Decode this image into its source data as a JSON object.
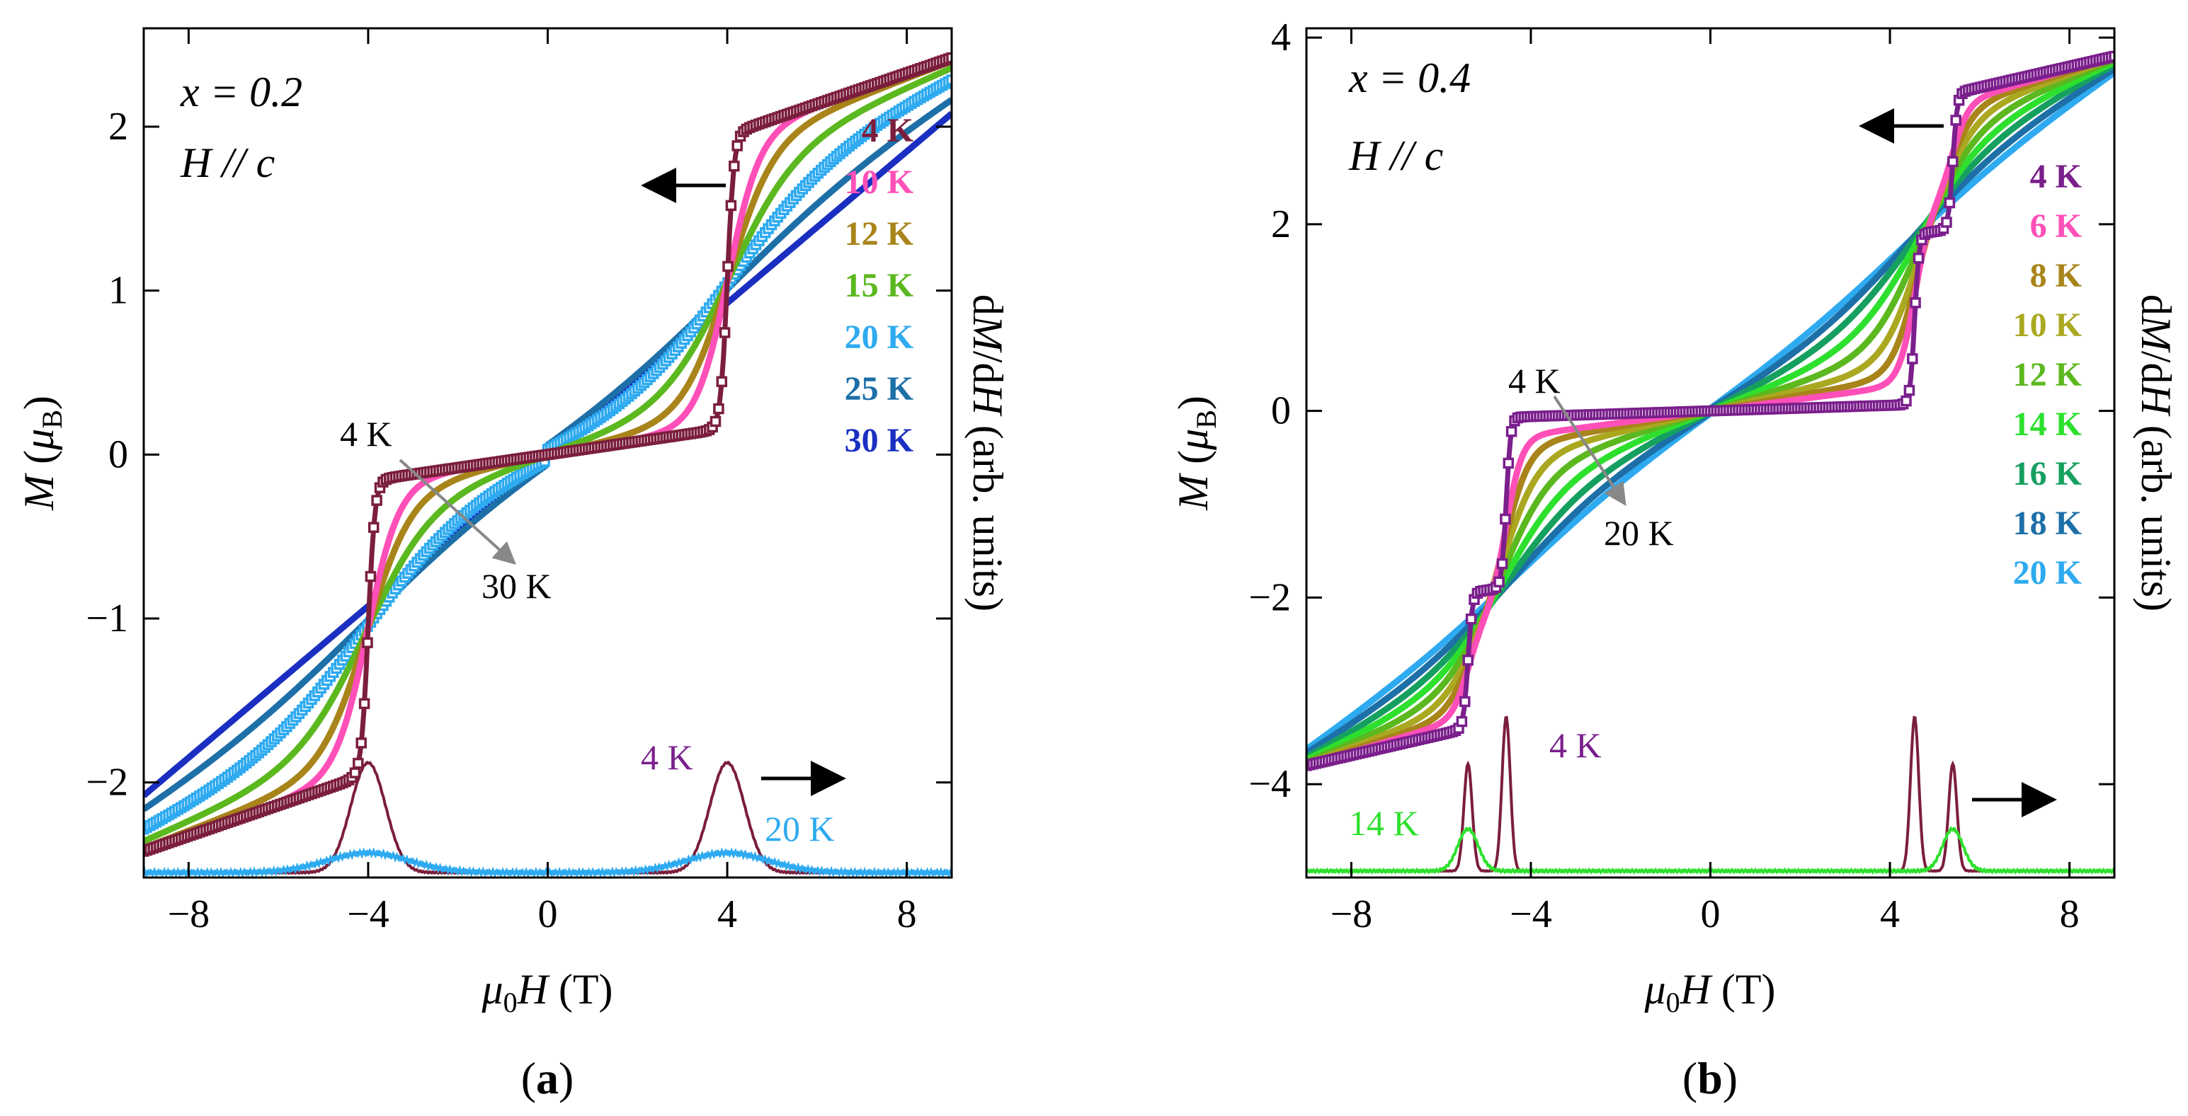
{
  "chart_data": [
    {
      "type": "line",
      "panel_label": "(a)",
      "panel_letter": "a",
      "xlim": [
        -9,
        9
      ],
      "ylim": [
        -2.58,
        2.6
      ],
      "xticks": [
        -8,
        -4,
        0,
        4,
        8
      ],
      "xtick_labels": [
        "−8",
        "−4",
        "0",
        "4",
        "8"
      ],
      "yticks": [
        -2,
        -1,
        0,
        1,
        2
      ],
      "ytick_labels": [
        "−2",
        "−1",
        "0",
        "1",
        "2"
      ],
      "xlabel": "μ0H (T)",
      "ylabel_left": "M (μB)",
      "ylabel_right": "dM/dH (arb. units)",
      "annotations": {
        "composition": "x = 0.2",
        "field_direction": "H // c",
        "trend_start": "4 K",
        "trend_end": "30 K",
        "deriv_label_4k": "4 K",
        "deriv_label_hi": "20 K"
      },
      "transition_field_T": 4.0,
      "transition_width_T": 0.3,
      "low_field_susceptibility": 0.04,
      "legend": [
        {
          "label": "4 K",
          "color": "#7b1e3c"
        },
        {
          "label": "10 K",
          "color": "#ff4fb8"
        },
        {
          "label": "12 K",
          "color": "#a8841a"
        },
        {
          "label": "15 K",
          "color": "#5bb81e"
        },
        {
          "label": "20 K",
          "color": "#2eaaf0"
        },
        {
          "label": "25 K",
          "color": "#1d6fa8"
        },
        {
          "label": "30 K",
          "color": "#1a2fc2"
        }
      ],
      "series": [
        {
          "name": "4 K",
          "color": "#7b1e3c",
          "M_at_9T": 2.42,
          "M_plateau_edge": 1.95,
          "kind": "sharp"
        },
        {
          "name": "10 K",
          "color": "#ff4fb8",
          "M_at_9T": 2.42,
          "sharpness": 0.35,
          "kind": "smooth"
        },
        {
          "name": "12 K",
          "color": "#a8841a",
          "M_at_9T": 2.4,
          "sharpness": 0.5,
          "kind": "smooth"
        },
        {
          "name": "15 K",
          "color": "#5bb81e",
          "M_at_9T": 2.36,
          "sharpness": 0.75,
          "kind": "smooth"
        },
        {
          "name": "20 K",
          "color": "#2eaaf0",
          "M_at_9T": 2.3,
          "sharpness": 1.15,
          "kind": "smooth"
        },
        {
          "name": "25 K",
          "color": "#1d6fa8",
          "M_at_9T": 2.2,
          "sharpness": 1.7,
          "kind": "smooth"
        },
        {
          "name": "30 K",
          "color": "#1a2fc2",
          "M_at_9T": 2.08,
          "sharpness": 2.6,
          "kind": "smooth"
        }
      ],
      "derivative": [
        {
          "name": "4 K",
          "color": "#7b1e3c",
          "peaks_T": [
            -4.0,
            4.0
          ],
          "baseline": -2.55,
          "height": 0.67,
          "width": 0.55
        },
        {
          "name": "20 K",
          "color": "#2eaaf0",
          "peaks_T": [
            -4.0,
            4.0
          ],
          "baseline": -2.55,
          "height": 0.12,
          "width": 1.3
        }
      ],
      "symbol_series": [
        "4 K",
        "20 K"
      ]
    },
    {
      "type": "line",
      "panel_label": "(b)",
      "panel_letter": "b",
      "xlim": [
        -9,
        9
      ],
      "ylim": [
        -5.0,
        4.1
      ],
      "xticks": [
        -8,
        -4,
        0,
        4,
        8
      ],
      "xtick_labels": [
        "−8",
        "−4",
        "0",
        "4",
        "8"
      ],
      "yticks": [
        -4,
        -2,
        0,
        2,
        4
      ],
      "ytick_labels": [
        "−4",
        "−2",
        "0",
        "2",
        "4"
      ],
      "xlabel": "μ0H (T)",
      "ylabel_left": "M (μB)",
      "ylabel_right": "dM/dH (arb. units)",
      "annotations": {
        "composition": "x = 0.4",
        "field_direction": "H // c",
        "trend_start": "4 K",
        "trend_end": "20 K",
        "deriv_label_4k": "4 K",
        "deriv_label_hi": "14 K"
      },
      "step_fields_T": [
        4.55,
        5.4
      ],
      "M_intermediate": 1.9,
      "M_saturation_edge": 3.4,
      "legend": [
        {
          "label": "4 K",
          "color": "#7a1f8c"
        },
        {
          "label": "6 K",
          "color": "#ff4fb8"
        },
        {
          "label": "8 K",
          "color": "#a8841a"
        },
        {
          "label": "10 K",
          "color": "#aaa820"
        },
        {
          "label": "12 K",
          "color": "#5bb81e"
        },
        {
          "label": "14 K",
          "color": "#2ee02e"
        },
        {
          "label": "16 K",
          "color": "#16a060"
        },
        {
          "label": "18 K",
          "color": "#1d6fa8"
        },
        {
          "label": "20 K",
          "color": "#2eaaf0"
        }
      ],
      "series": [
        {
          "name": "4 K",
          "color": "#7a1f8c",
          "M_at_9T": 3.8,
          "kind": "sharp"
        },
        {
          "name": "6 K",
          "color": "#ff4fb8",
          "M_at_9T": 3.8,
          "sharpness": 0.3,
          "kind": "smooth"
        },
        {
          "name": "8 K",
          "color": "#a8841a",
          "M_at_9T": 3.79,
          "sharpness": 0.45,
          "kind": "smooth"
        },
        {
          "name": "10 K",
          "color": "#aaa820",
          "M_at_9T": 3.78,
          "sharpness": 0.65,
          "kind": "smooth"
        },
        {
          "name": "12 K",
          "color": "#5bb81e",
          "M_at_9T": 3.76,
          "sharpness": 0.9,
          "kind": "smooth"
        },
        {
          "name": "14 K",
          "color": "#2ee02e",
          "M_at_9T": 3.74,
          "sharpness": 1.2,
          "kind": "smooth"
        },
        {
          "name": "16 K",
          "color": "#16a060",
          "M_at_9T": 3.72,
          "sharpness": 1.55,
          "kind": "smooth"
        },
        {
          "name": "18 K",
          "color": "#1d6fa8",
          "M_at_9T": 3.68,
          "sharpness": 1.95,
          "kind": "smooth"
        },
        {
          "name": "20 K",
          "color": "#2eaaf0",
          "M_at_9T": 3.64,
          "sharpness": 2.4,
          "kind": "smooth"
        }
      ],
      "derivative": [
        {
          "name": "4 K",
          "color": "#7b1e3c",
          "peaks_T": [
            -5.4,
            -4.55,
            4.55,
            5.4
          ],
          "heights": [
            1.15,
            1.65,
            1.65,
            1.15
          ],
          "baseline": -4.93,
          "width": 0.13
        },
        {
          "name": "14 K",
          "color": "#2ee02e",
          "peaks_T": [
            -5.4,
            5.4
          ],
          "heights": [
            0.45,
            0.45
          ],
          "baseline": -4.93,
          "width": 0.32
        }
      ],
      "symbol_series": [
        "4 K"
      ]
    }
  ]
}
